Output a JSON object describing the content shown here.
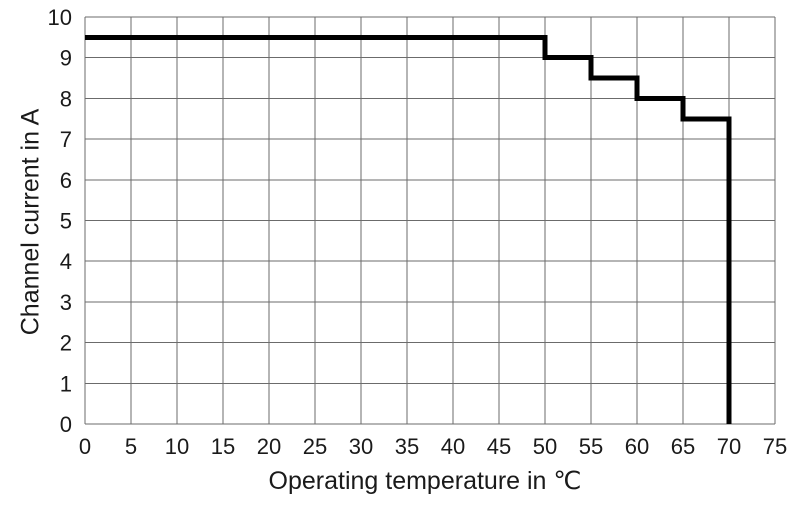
{
  "chart_data": {
    "type": "line",
    "line_style": "step",
    "title": "",
    "xlabel": "Operating temperature in ℃",
    "ylabel": "Channel current in A",
    "xlim": [
      0,
      75
    ],
    "ylim": [
      0,
      10
    ],
    "x_ticks": [
      0,
      5,
      10,
      15,
      20,
      25,
      30,
      35,
      40,
      45,
      50,
      55,
      60,
      65,
      70,
      75
    ],
    "y_ticks": [
      0,
      1,
      2,
      3,
      4,
      5,
      6,
      7,
      8,
      9,
      10
    ],
    "grid": true,
    "legend_position": "none",
    "gridline_color": "#6b6b6b",
    "axis_text_color": "#1a1a1a",
    "background_color": "#ffffff",
    "series": [
      {
        "color": "#000000",
        "stroke_width": 5,
        "points": [
          [
            0,
            9.5
          ],
          [
            50,
            9.5
          ],
          [
            50,
            9.0
          ],
          [
            55,
            9.0
          ],
          [
            55,
            8.5
          ],
          [
            60,
            8.5
          ],
          [
            60,
            8.0
          ],
          [
            65,
            8.0
          ],
          [
            65,
            7.5
          ],
          [
            70,
            7.5
          ],
          [
            70,
            0
          ]
        ]
      }
    ]
  }
}
